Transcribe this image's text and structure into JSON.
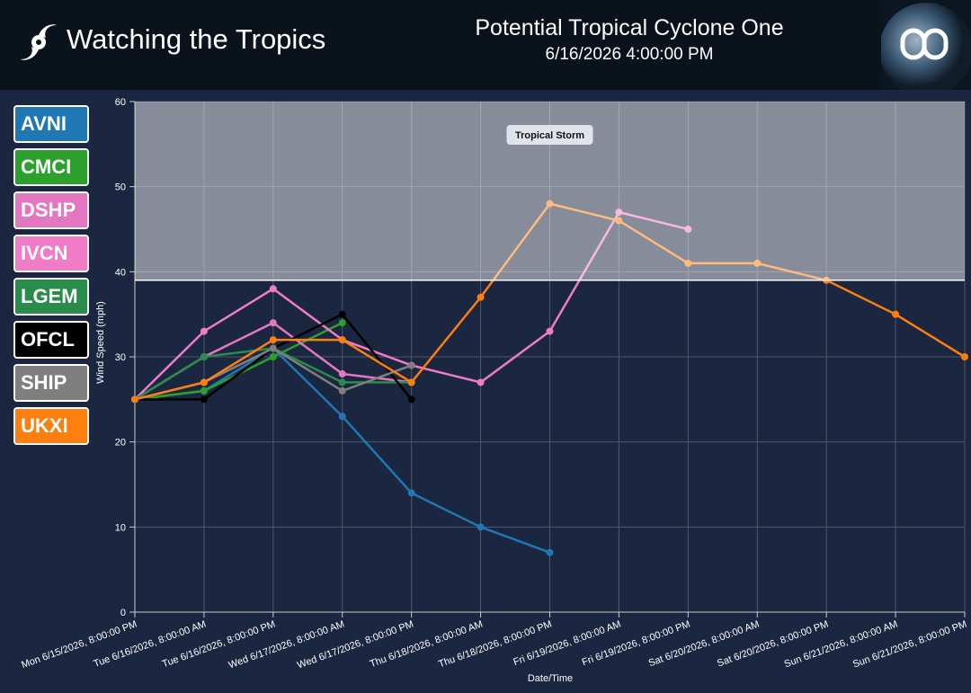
{
  "header": {
    "app_title": "Watching the Tropics"
  },
  "chart_data": {
    "type": "line",
    "title": "Potential Tropical Cyclone One",
    "subtitle": "6/16/2026 4:00:00 PM",
    "x_label": "Date/Time",
    "y_label": "Wind Speed (mph)",
    "categories": [
      "Mon 6/15/2026, 8:00:00 PM",
      "Tue 6/16/2026, 8:00:00 AM",
      "Tue 6/16/2026, 8:00:00 PM",
      "Wed 6/17/2026, 8:00:00 AM",
      "Wed 6/17/2026, 8:00:00 PM",
      "Thu 6/18/2026, 8:00:00 AM",
      "Thu 6/18/2026, 8:00:00 PM",
      "Fri 6/19/2026, 8:00:00 AM",
      "Fri 6/19/2026, 8:00:00 PM",
      "Sat 6/20/2026, 8:00:00 AM",
      "Sat 6/20/2026, 8:00:00 PM",
      "Sun 6/21/2026, 8:00:00 AM",
      "Sun 6/21/2026, 8:00:00 PM"
    ],
    "series": [
      {
        "name": "AVNI",
        "color": "#1f77b4",
        "values": [
          25,
          26,
          31,
          23,
          14,
          10,
          7,
          null,
          null,
          null,
          null,
          null,
          null
        ]
      },
      {
        "name": "CMCI",
        "color": "#2ca02c",
        "values": [
          25,
          26,
          30,
          34,
          null,
          null,
          null,
          null,
          null,
          null,
          null,
          null,
          null
        ]
      },
      {
        "name": "DSHP",
        "color": "#e377c2",
        "values": [
          25,
          30,
          34,
          28,
          27,
          null,
          null,
          null,
          null,
          null,
          null,
          null,
          null
        ]
      },
      {
        "name": "IVCN",
        "color": "#f07cc8",
        "values": [
          25,
          33,
          38,
          32,
          29,
          27,
          33,
          47,
          45,
          null,
          null,
          null,
          null
        ]
      },
      {
        "name": "LGEM",
        "color": "#2a8c4a",
        "values": [
          25,
          30,
          31,
          27,
          27,
          null,
          null,
          null,
          null,
          null,
          null,
          null,
          null
        ]
      },
      {
        "name": "OFCL",
        "color": "#000000",
        "values": [
          25,
          25,
          31,
          35,
          25,
          null,
          null,
          null,
          null,
          null,
          null,
          null,
          null
        ]
      },
      {
        "name": "SHIP",
        "color": "#7f7f7f",
        "values": [
          25,
          27,
          31,
          26,
          29,
          null,
          null,
          null,
          null,
          null,
          null,
          null,
          null
        ]
      },
      {
        "name": "UKXI",
        "color": "#ff7f0e",
        "values": [
          25,
          27,
          32,
          32,
          27,
          37,
          48,
          46,
          41,
          41,
          39,
          35,
          30
        ]
      }
    ],
    "band": {
      "label": "Tropical Storm",
      "from": 39
    },
    "ylim": [
      0,
      60
    ],
    "yticks": [
      0,
      10,
      20,
      30,
      40,
      50,
      60
    ],
    "grid": true
  }
}
